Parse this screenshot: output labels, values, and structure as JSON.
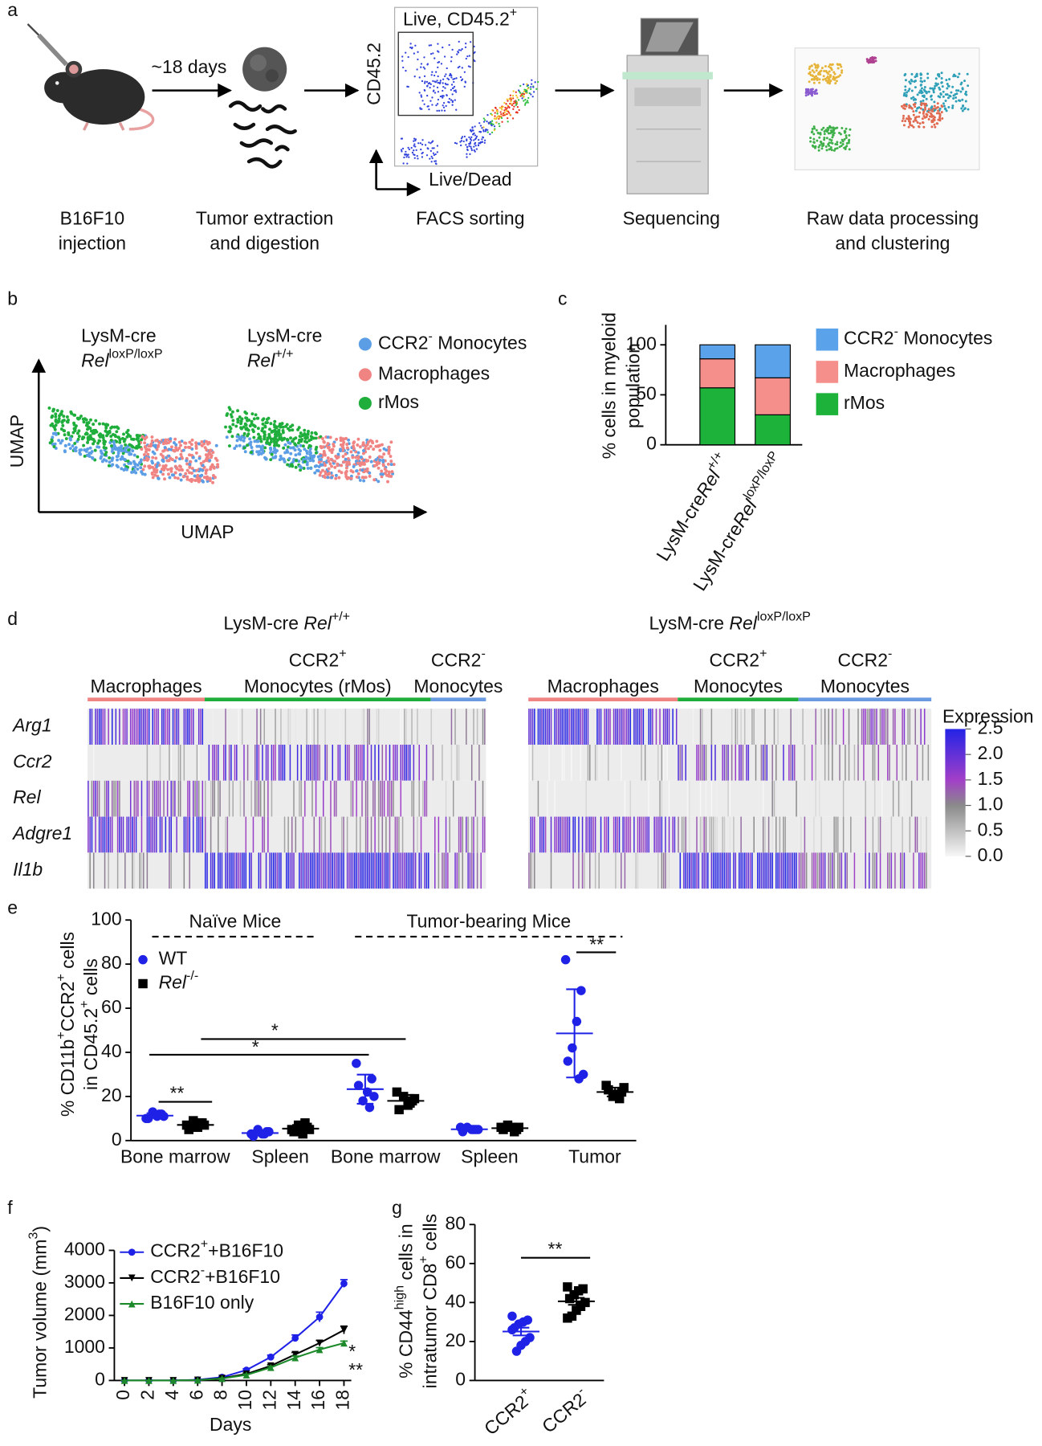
{
  "panel_labels": [
    "a",
    "b",
    "c",
    "d",
    "e",
    "f",
    "g"
  ],
  "workflow": {
    "arrow_label": "~18 days",
    "gate_label": [
      {
        "t": "Live, CD45.2"
      },
      {
        "t": "+",
        "s": "sup"
      }
    ],
    "facs_y_label": "CD45.2",
    "facs_x_label": "Live/Dead",
    "captions": [
      [
        "B16F10",
        "injection"
      ],
      [
        "Tumor extraction",
        "and digestion"
      ],
      [
        "FACS sorting"
      ],
      [
        "Sequencing"
      ],
      [
        "Raw data processing",
        "and clustering"
      ]
    ]
  },
  "umap": {
    "plots": [
      {
        "title": [
          "LysM-cre",
          [
            {
              "t": "Rel",
              "s": "i"
            },
            {
              "t": "loxP/loxP",
              "s": "sup"
            }
          ]
        ]
      },
      {
        "title": [
          "LysM-cre",
          [
            {
              "t": "Rel",
              "s": "i"
            },
            {
              "t": "+/+",
              "s": "sup"
            }
          ]
        ]
      }
    ],
    "legend": [
      {
        "name": [
          {
            "t": "CCR2"
          },
          {
            "t": "-",
            "s": "sup"
          },
          {
            "t": " Monocytes"
          }
        ],
        "color": "#5b9ee6"
      },
      {
        "name": "Macrophages",
        "color": "#f08482"
      },
      {
        "name": "rMos",
        "color": "#1fae3c"
      }
    ],
    "x_label": "UMAP",
    "y_label": "UMAP"
  },
  "chart_data": [
    {
      "type": "stacked_bar",
      "y_label": [
        "% cells in myeloid",
        "population"
      ],
      "categories": [
        [
          {
            "t": "LysM-cre"
          },
          {
            "t": "Rel",
            "s": "i"
          },
          {
            "t": "+/+",
            "s": "sup"
          }
        ],
        [
          {
            "t": "LysM-cre"
          },
          {
            "t": "Rel",
            "s": "i"
          },
          {
            "t": "loxP/loxP",
            "s": "sup"
          }
        ]
      ],
      "series": [
        {
          "name": "rMos",
          "color": "#1db33a",
          "values": [
            57,
            30
          ]
        },
        {
          "name": "Macrophages",
          "color": "#f58f8c",
          "values": [
            29,
            37
          ]
        },
        {
          "name": [
            {
              "t": "CCR2"
            },
            {
              "t": "-",
              "s": "sup"
            },
            {
              "t": " Monocytes"
            }
          ],
          "color": "#5aa2ea",
          "values": [
            14,
            33
          ]
        }
      ],
      "ylim": [
        0,
        120
      ],
      "yticks": [
        0,
        50,
        100
      ]
    },
    {
      "type": "heatmap",
      "title": [
        {
          "t": "LysM-cre "
        },
        {
          "t": "Rel",
          "s": "i"
        },
        {
          "t": "+/+",
          "s": "sup"
        }
      ],
      "rows": [
        "Arg1",
        "Ccr2",
        "Rel",
        "Adgre1",
        "Il1b"
      ],
      "row_label_style": "italic",
      "columns": [
        {
          "label": [
            "Macrophages"
          ],
          "color": "#f08482"
        },
        {
          "label": [
            [
              {
                "t": "CCR2"
              },
              {
                "t": "+",
                "s": "sup"
              }
            ],
            "Monocytes (rMos)"
          ],
          "color": "#1fae3c"
        },
        {
          "label": [
            [
              {
                "t": "CCR2"
              },
              {
                "t": "-",
                "s": "sup"
              }
            ],
            "Monocytes"
          ],
          "color": "#6a9be0"
        }
      ],
      "values": [
        [
          2.0,
          0.6,
          0.8
        ],
        [
          0.3,
          1.8,
          0.6
        ],
        [
          1.5,
          1.0,
          0.7
        ],
        [
          2.2,
          1.0,
          1.2
        ],
        [
          0.6,
          2.3,
          1.4
        ]
      ]
    },
    {
      "type": "heatmap",
      "title": [
        {
          "t": "LysM-cre "
        },
        {
          "t": "Rel",
          "s": "i"
        },
        {
          "t": "loxP/loxP",
          "s": "sup"
        }
      ],
      "columns": [
        {
          "label": [
            "Macrophages"
          ],
          "color": "#f08482"
        },
        {
          "label": [
            [
              {
                "t": "CCR2"
              },
              {
                "t": "+",
                "s": "sup"
              }
            ],
            "Monocytes"
          ],
          "color": "#1fae3c"
        },
        {
          "label": [
            [
              {
                "t": "CCR2"
              },
              {
                "t": "-",
                "s": "sup"
              }
            ],
            "Monocytes"
          ],
          "color": "#6a9be0"
        }
      ],
      "values": [
        [
          2.2,
          0.6,
          1.2
        ],
        [
          0.4,
          1.6,
          1.0
        ],
        [
          0.3,
          0.5,
          0.4
        ],
        [
          2.0,
          0.8,
          0.8
        ],
        [
          0.8,
          2.3,
          1.5
        ]
      ],
      "colorbar": {
        "title": "Expression",
        "lim": [
          0,
          2.5
        ],
        "ticks": [
          {
            "value": 0,
            "label": "0.0"
          },
          0.5,
          {
            "value": 1,
            "label": "1.0"
          },
          1.5,
          {
            "value": 2,
            "label": "2.0"
          },
          2.5
        ]
      }
    },
    {
      "type": "dot",
      "y_label": [
        [
          {
            "t": "% CD11b"
          },
          {
            "t": "+",
            "s": "sup"
          },
          {
            "t": "CCR2"
          },
          {
            "t": "+",
            "s": "sup"
          },
          {
            "t": " cells"
          }
        ],
        [
          {
            "t": "in CD45.2"
          },
          {
            "t": "+",
            "s": "sup"
          },
          {
            "t": " cells"
          }
        ]
      ],
      "categories": [
        "Bone marrow",
        "Spleen",
        "Bone marrow",
        "Spleen",
        "Tumor"
      ],
      "series": [
        {
          "name": "WT",
          "color": "#1f22e6",
          "marker": "circle",
          "values": [
            11.3,
            3.4,
            23.3,
            5.1,
            48.6
          ],
          "errors": [
            1.1,
            1,
            6.6,
            0.7,
            20
          ],
          "points": [
            [
              10,
              12,
              11,
              13,
              10,
              11,
              12
            ],
            [
              3,
              4,
              3,
              5,
              2,
              4,
              3
            ],
            [
              35,
              28,
              22,
              18,
              25,
              20,
              15
            ],
            [
              6,
              5,
              5,
              6,
              4,
              5,
              5
            ],
            [
              82,
              68,
              54,
              42,
              36,
              30,
              28
            ]
          ]
        },
        {
          "name": [
            {
              "t": "Rel",
              "s": "i"
            },
            {
              "t": "-/-",
              "s": "sup"
            }
          ],
          "color": "#000000",
          "marker": "square",
          "values": [
            7.1,
            5.4,
            18,
            5.6,
            22
          ],
          "errors": [
            1.3,
            1.7,
            2.7,
            1,
            2
          ],
          "points": [
            [
              7,
              8,
              6,
              9,
              5,
              7,
              8
            ],
            [
              5,
              6,
              3,
              7,
              4,
              5,
              8
            ],
            [
              22,
              18,
              16,
              20,
              14,
              19,
              17
            ],
            [
              6,
              5,
              6,
              7,
              5,
              6,
              4
            ],
            [
              25,
              22,
              21,
              20,
              23,
              24,
              19
            ]
          ]
        }
      ],
      "ylim": [
        0,
        100
      ],
      "yticks": [
        0,
        20,
        40,
        60,
        80,
        100
      ],
      "annotations": [
        "Naïve Mice",
        "Tumor-bearing Mice",
        "**",
        "*",
        "*",
        "**"
      ]
    },
    {
      "type": "line",
      "x_label": "Days",
      "y_label": [
        {
          "t": "Tumor volume (mm"
        },
        {
          "t": "3",
          "s": "sup"
        },
        {
          "t": ")"
        }
      ],
      "x": [
        0,
        2,
        4,
        6,
        8,
        10,
        12,
        14,
        16,
        18
      ],
      "xlim": [
        0,
        18
      ],
      "xticks": [
        0,
        2,
        4,
        6,
        8,
        10,
        12,
        14,
        16,
        18
      ],
      "ylim": [
        0,
        4000
      ],
      "yticks": [
        0,
        1000,
        2000,
        3000,
        4000
      ],
      "series": [
        {
          "name": [
            {
              "t": "CCR2"
            },
            {
              "t": "+",
              "s": "sup"
            },
            {
              "t": "+B16F10"
            }
          ],
          "color": "#1f22e6",
          "marker": "circle",
          "values": [
            0,
            0,
            0,
            20,
            100,
            320,
            720,
            1300,
            1950,
            2980
          ],
          "errors": [
            0,
            0,
            0,
            10,
            20,
            40,
            60,
            100,
            150,
            120
          ]
        },
        {
          "name": [
            {
              "t": "CCR2"
            },
            {
              "t": "-",
              "s": "sup"
            },
            {
              "t": "+B16F10"
            }
          ],
          "color": "#000000",
          "marker": "triangle-down",
          "values": [
            0,
            0,
            0,
            10,
            70,
            200,
            450,
            800,
            1150,
            1550
          ],
          "errors": [
            0,
            0,
            0,
            5,
            15,
            30,
            40,
            60,
            80,
            120
          ]
        },
        {
          "name": "B16F10 only",
          "color": "#1c8a2a",
          "marker": "triangle-up",
          "values": [
            0,
            0,
            0,
            10,
            60,
            170,
            400,
            700,
            950,
            1150
          ],
          "errors": [
            0,
            0,
            0,
            5,
            10,
            25,
            40,
            50,
            60,
            60
          ]
        }
      ],
      "annotations": [
        "*",
        "**"
      ]
    },
    {
      "type": "dot",
      "y_label": [
        [
          {
            "t": "% CD44"
          },
          {
            "t": "high",
            "s": "sup"
          },
          {
            "t": " cells in"
          }
        ],
        [
          {
            "t": "intratumor CD8"
          },
          {
            "t": "+",
            "s": "sup"
          },
          {
            "t": " cells"
          }
        ]
      ],
      "categories": [
        [
          {
            "t": "CCR2"
          },
          {
            "t": "+",
            "s": "sup"
          }
        ],
        [
          {
            "t": "CCR2"
          },
          {
            "t": "-",
            "s": "sup"
          }
        ]
      ],
      "series": [
        {
          "colors": [
            "#1f22e6",
            "#000000"
          ],
          "markers": [
            "circle",
            "square"
          ],
          "values": [
            25.1,
            40.6
          ],
          "errors": [
            2,
            1.8
          ],
          "points": [
            [
              33,
              31,
              30,
              29,
              27,
              22,
              20,
              18,
              15,
              26
            ],
            [
              48,
              47,
              46,
              44,
              42,
              40,
              38,
              36,
              33,
              32
            ]
          ]
        }
      ],
      "ylim": [
        0,
        80
      ],
      "yticks": [
        0,
        20,
        40,
        60,
        80
      ],
      "annotations": [
        "**"
      ]
    }
  ]
}
